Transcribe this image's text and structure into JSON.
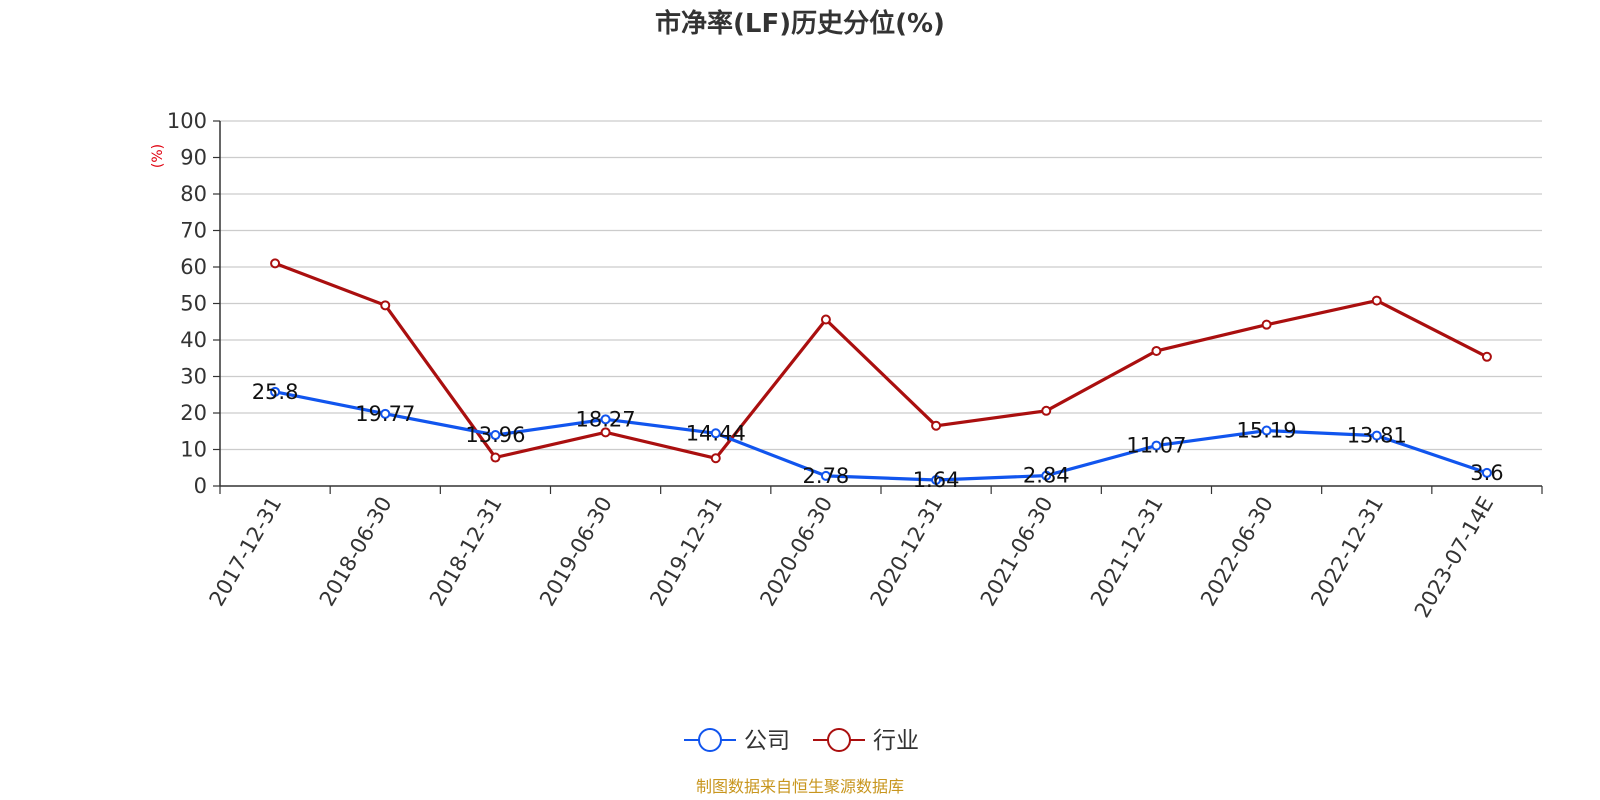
{
  "chart_data": {
    "type": "line",
    "title": "市净率(LF)历史分位(%)",
    "ylabel": "(%)",
    "xlabel": "",
    "ylim": [
      0,
      100
    ],
    "yticks": [
      0,
      10,
      20,
      30,
      40,
      50,
      60,
      70,
      80,
      90,
      100
    ],
    "grid": true,
    "legend_position": "bottom-center",
    "categories": [
      "2017-12-31",
      "2018-06-30",
      "2018-12-31",
      "2019-06-30",
      "2019-12-31",
      "2020-06-30",
      "2020-12-31",
      "2021-06-30",
      "2021-12-31",
      "2022-06-30",
      "2022-12-31",
      "2023-07-14E"
    ],
    "series": [
      {
        "name": "公司",
        "color": "#1155ee",
        "values": [
          25.8,
          19.77,
          13.96,
          18.27,
          14.44,
          2.78,
          1.64,
          2.84,
          11.07,
          15.19,
          13.81,
          3.6
        ],
        "labels": [
          "25.8",
          "19.77",
          "13.96",
          "18.27",
          "14.44",
          "2.78",
          "1.64",
          "2.84",
          "11.07",
          "15.19",
          "13.81",
          "3.6"
        ]
      },
      {
        "name": "行业",
        "color": "#aa0f0f",
        "values": [
          61,
          49.5,
          7.8,
          14.7,
          7.6,
          45.6,
          16.5,
          20.6,
          37,
          44.2,
          50.8,
          35.4
        ]
      }
    ],
    "source": "制图数据来自恒生聚源数据库",
    "source_color": "#c8961e",
    "ylabel_color": "#e0000f"
  }
}
